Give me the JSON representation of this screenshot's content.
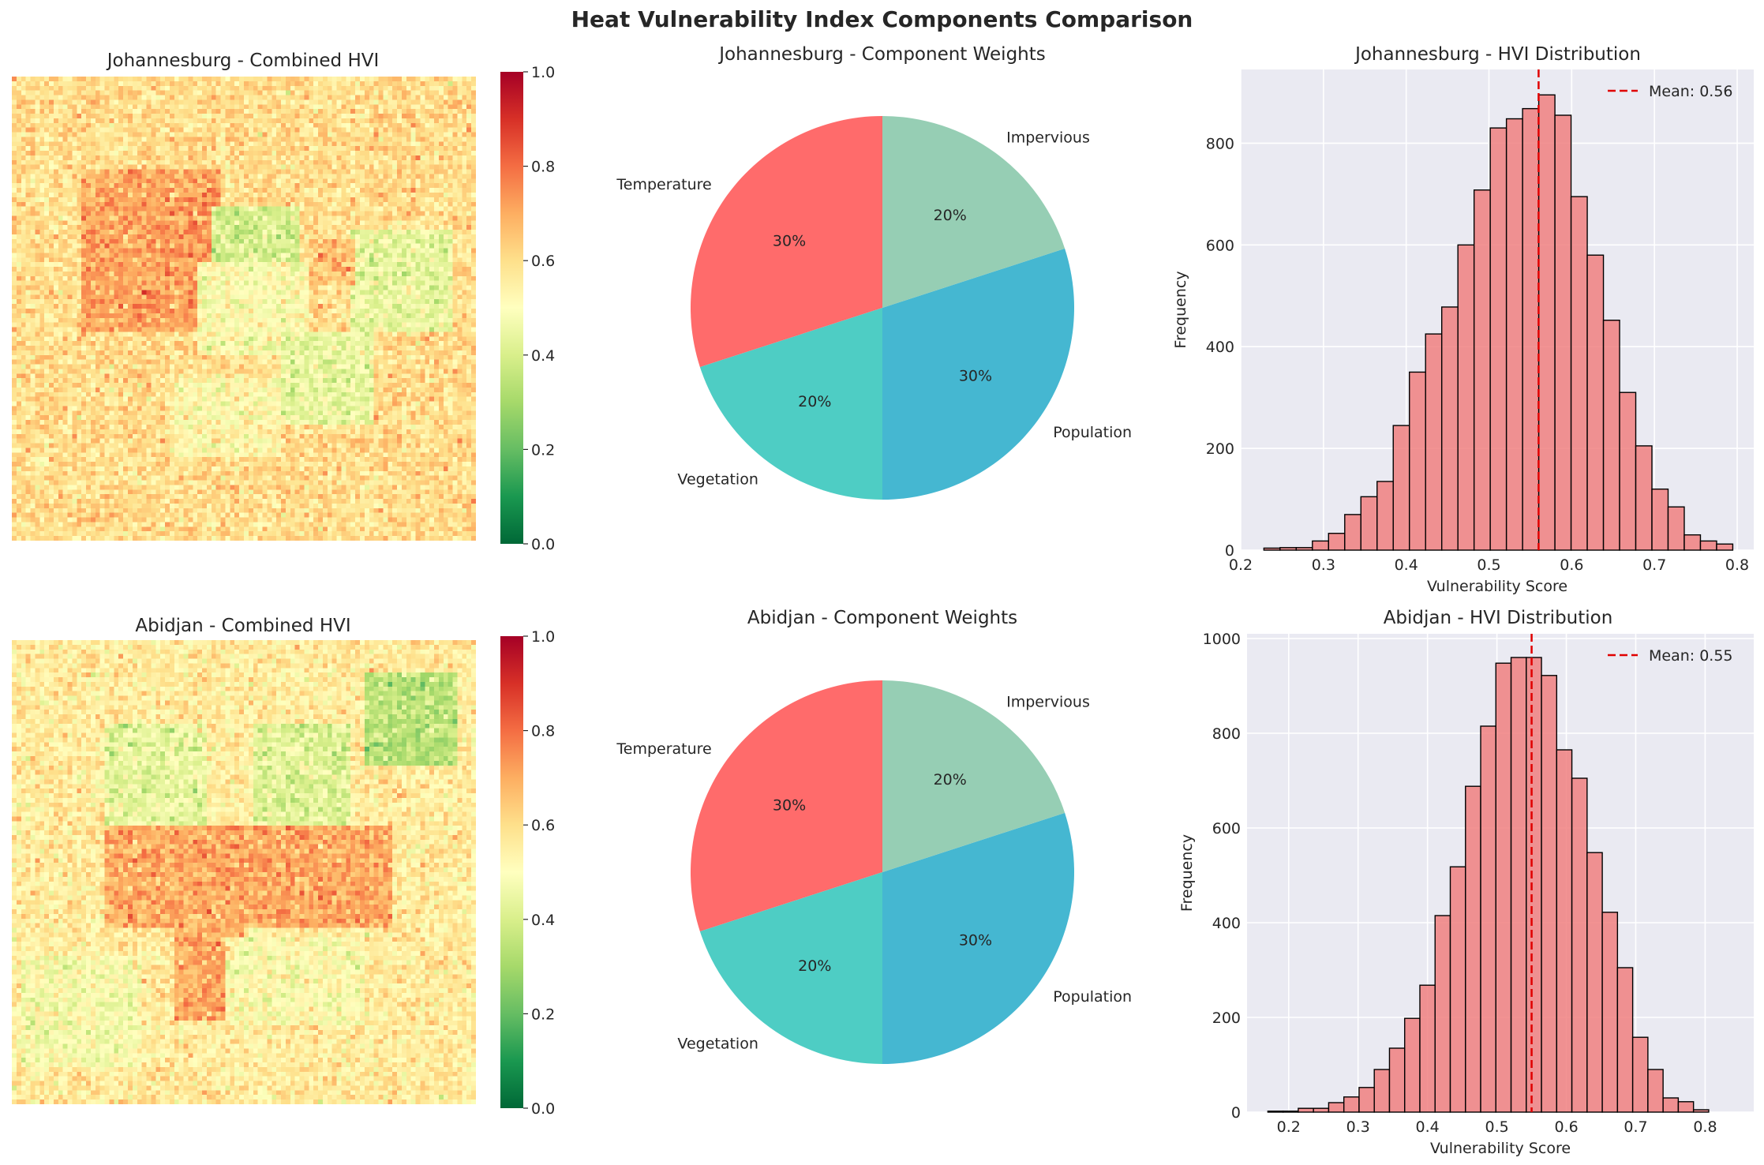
{
  "suptitle": "Heat Vulnerability Index Components Comparison",
  "chart_data": [
    {
      "type": "heatmap",
      "title": "Johannesburg - Combined HVI",
      "colormap": "RdYlGn_r",
      "clim": [
        0,
        1
      ],
      "colorbar_ticks": [
        "0.0",
        "0.2",
        "0.4",
        "0.6",
        "0.8",
        "1.0"
      ],
      "grid_size": [
        100,
        100
      ],
      "base_value": 0.6,
      "regions": [
        {
          "rows": [
            20,
            55
          ],
          "cols": [
            15,
            45
          ],
          "value": 0.71
        },
        {
          "rows": [
            28,
            43
          ],
          "cols": [
            43,
            62
          ],
          "value": 0.4
        },
        {
          "rows": [
            40,
            60
          ],
          "cols": [
            40,
            64
          ],
          "value": 0.5
        },
        {
          "rows": [
            33,
            55
          ],
          "cols": [
            73,
            95
          ],
          "value": 0.44
        },
        {
          "rows": [
            55,
            75
          ],
          "cols": [
            58,
            78
          ],
          "value": 0.44
        },
        {
          "rows": [
            65,
            82
          ],
          "cols": [
            35,
            58
          ],
          "value": 0.52
        },
        {
          "rows": [
            35,
            45
          ],
          "cols": [
            64,
            74
          ],
          "value": 0.67
        }
      ]
    },
    {
      "type": "pie",
      "title": "Johannesburg - Component Weights",
      "labels": [
        "Temperature",
        "Vegetation",
        "Population",
        "Impervious"
      ],
      "values": [
        30,
        20,
        30,
        20
      ],
      "percent_labels": [
        "30%",
        "20%",
        "30%",
        "20%"
      ],
      "colors": [
        "#FF6B6B",
        "#4ECDC4",
        "#45B7D1",
        "#96CEB4"
      ],
      "start_angle": 90
    },
    {
      "type": "bar",
      "subtype": "histogram",
      "title": "Johannesburg - HVI Distribution",
      "xlabel": "Vulnerability Score",
      "ylabel": "Frequency",
      "xlim": [
        0.2,
        0.82
      ],
      "ylim": [
        0,
        945
      ],
      "xticks": [
        "0.2",
        "0.3",
        "0.4",
        "0.5",
        "0.6",
        "0.7",
        "0.8"
      ],
      "yticks": [
        "0",
        "200",
        "400",
        "600",
        "800"
      ],
      "bin_start": 0.228,
      "bin_width": 0.01954,
      "counts": [
        4,
        5,
        5,
        18,
        33,
        70,
        105,
        135,
        245,
        350,
        425,
        478,
        600,
        708,
        830,
        848,
        868,
        895,
        855,
        695,
        580,
        452,
        310,
        205,
        120,
        85,
        30,
        18,
        12
      ],
      "mean": 0.56,
      "legend": "Mean: 0.56",
      "legend_position": "upper right",
      "bar_color": "#F08080",
      "mean_color": "#E00000"
    },
    {
      "type": "heatmap",
      "title": "Abidjan - Combined HVI",
      "colormap": "RdYlGn_r",
      "clim": [
        0,
        1
      ],
      "colorbar_ticks": [
        "0.0",
        "0.2",
        "0.4",
        "0.6",
        "0.8",
        "1.0"
      ],
      "grid_size": [
        100,
        100
      ],
      "base_value": 0.56,
      "regions": [
        {
          "rows": [
            40,
            62
          ],
          "cols": [
            20,
            82
          ],
          "value": 0.7
        },
        {
          "rows": [
            62,
            82
          ],
          "cols": [
            35,
            50
          ],
          "value": 0.7
        },
        {
          "rows": [
            18,
            40
          ],
          "cols": [
            20,
            42
          ],
          "value": 0.44
        },
        {
          "rows": [
            18,
            40
          ],
          "cols": [
            52,
            73
          ],
          "value": 0.42
        },
        {
          "rows": [
            7,
            27
          ],
          "cols": [
            76,
            96
          ],
          "value": 0.34
        },
        {
          "rows": [
            64,
            83
          ],
          "cols": [
            46,
            76
          ],
          "value": 0.5
        },
        {
          "rows": [
            68,
            92
          ],
          "cols": [
            2,
            28
          ],
          "value": 0.48
        }
      ]
    },
    {
      "type": "pie",
      "title": "Abidjan - Component Weights",
      "labels": [
        "Temperature",
        "Vegetation",
        "Population",
        "Impervious"
      ],
      "values": [
        30,
        20,
        30,
        20
      ],
      "percent_labels": [
        "30%",
        "20%",
        "30%",
        "20%"
      ],
      "colors": [
        "#FF6B6B",
        "#4ECDC4",
        "#45B7D1",
        "#96CEB4"
      ],
      "start_angle": 90
    },
    {
      "type": "bar",
      "subtype": "histogram",
      "title": "Abidjan - HVI Distribution",
      "xlabel": "Vulnerability Score",
      "ylabel": "Frequency",
      "xlim": [
        0.14,
        0.87
      ],
      "ylim": [
        0,
        1010
      ],
      "xticks": [
        "0.2",
        "0.3",
        "0.4",
        "0.5",
        "0.6",
        "0.7",
        "0.8"
      ],
      "yticks": [
        "0",
        "200",
        "400",
        "600",
        "800",
        "1000"
      ],
      "bin_start": 0.17,
      "bin_width": 0.0219,
      "counts": [
        2,
        2,
        8,
        8,
        20,
        32,
        52,
        90,
        135,
        198,
        268,
        415,
        518,
        688,
        815,
        948,
        960,
        960,
        922,
        765,
        705,
        548,
        422,
        305,
        158,
        90,
        30,
        22,
        5
      ],
      "mean": 0.55,
      "legend": "Mean: 0.55",
      "legend_position": "upper right",
      "bar_color": "#F08080",
      "mean_color": "#E00000"
    }
  ]
}
